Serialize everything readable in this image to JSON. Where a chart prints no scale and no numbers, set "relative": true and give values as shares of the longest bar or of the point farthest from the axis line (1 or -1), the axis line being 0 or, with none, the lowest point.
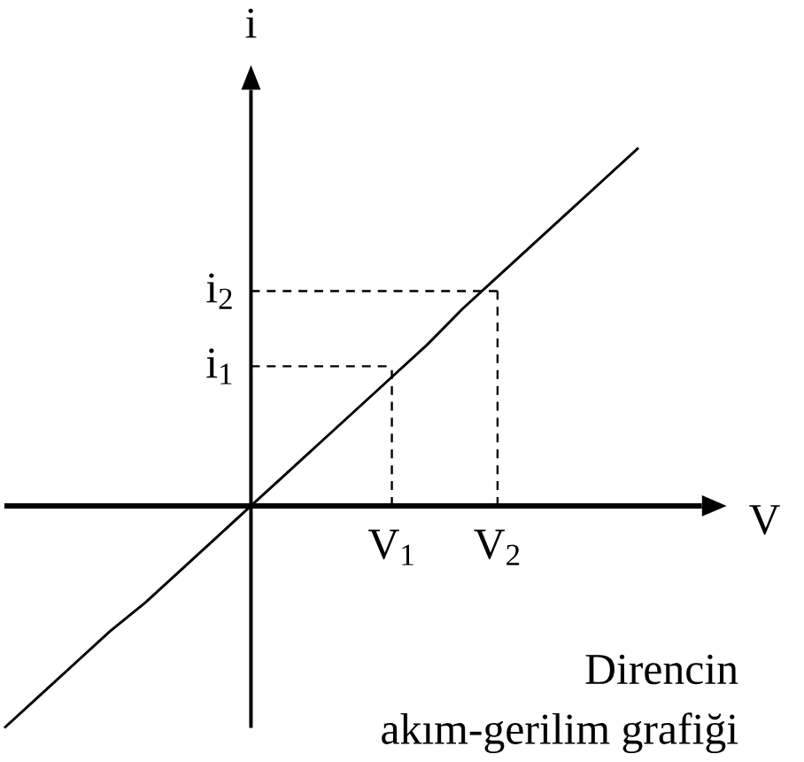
{
  "chart_data": {
    "type": "line",
    "relative": true,
    "xlabel": "V",
    "ylabel": "i",
    "categories": [
      null,
      null,
      null,
      null,
      null,
      null,
      null,
      null,
      null,
      null,
      null,
      "V$_{1}$",
      null,
      null,
      "V$_{2}$",
      null,
      null,
      null,
      null
    ],
    "series": [
      {
        "color": "#000000",
        "values": [
          -0.62,
          -0.53,
          -0.44,
          -0.35,
          -0.27,
          -0.18,
          -0.09,
          0,
          0.09,
          0.18,
          0.27,
          0.36,
          0.45,
          0.55,
          0.64,
          0.73,
          0.82,
          0.91,
          1
        ]
      }
    ],
    "ref_lines": [
      {
        "axis": "x",
        "value": "V$_{1}$",
        "line_style": "dashed"
      },
      {
        "axis": "x",
        "value": "V$_{2}$",
        "line_style": "dashed"
      },
      {
        "axis": "y",
        "value": 0.39,
        "label": "i$_{1}$",
        "line_style": "dashed"
      },
      {
        "axis": "y",
        "value": 0.6,
        "label": "i$_{2}$",
        "line_style": "dashed"
      }
    ],
    "annotations": [
      "Direncin",
      "akım-gerilim grafiği"
    ]
  }
}
